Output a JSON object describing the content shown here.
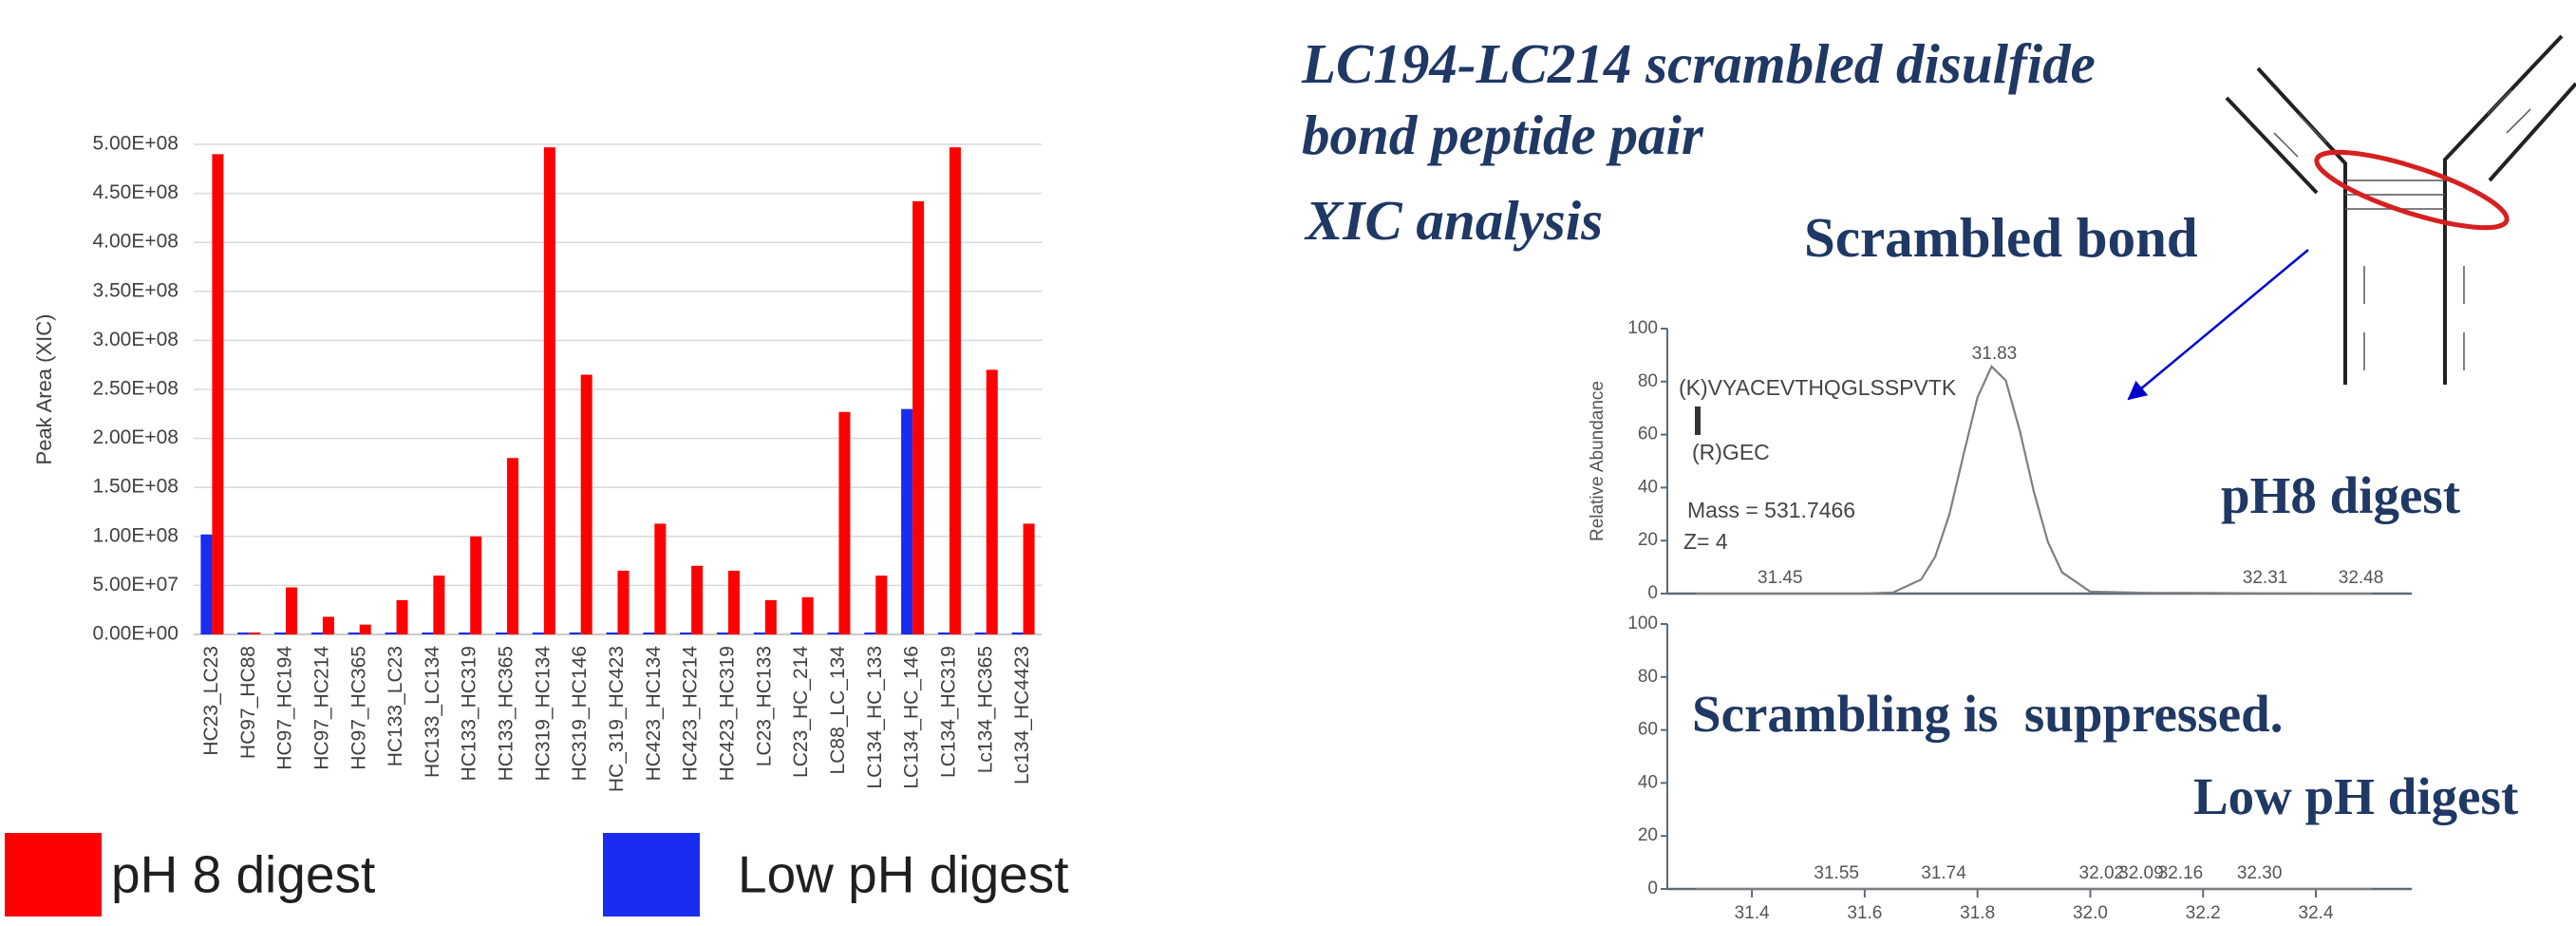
{
  "slide": {
    "title_lines": [
      "LC194-LC214 scrambled disulfide",
      "bond peptide pair"
    ],
    "subtitle": "XIC analysis",
    "callouts": [
      "Scrambled bond",
      "pH8 digest",
      "Scrambling is  suppressed.",
      "Low pH digest"
    ]
  },
  "chart_data": [
    {
      "type": "bar",
      "y_label": "Peak Area (XIC)",
      "categories": [
        "HC23_LC23",
        "HC97_HC88",
        "HC97_HC194",
        "HC97_HC214",
        "HC97_HC365",
        "HC133_LC23",
        "HC133_LC134",
        "HC133_HC319",
        "HC133_HC365",
        "HC319_HC134",
        "HC319_HC146",
        "HC_319_HC423",
        "HC423_HC134",
        "HC423_HC214",
        "HC423_HC319",
        "LC23_HC133",
        "LC23_HC_214",
        "LC88_LC_134",
        "LC134_HC_133",
        "LC134_HC_146",
        "LC134_HC319",
        "Lc134_HC365",
        "Lc134_HC4423"
      ],
      "series": [
        {
          "name": "Low pH digest",
          "color": "#1a2cf0",
          "values": [
            102000000,
            2000000,
            2000000,
            2000000,
            2000000,
            2000000,
            2000000,
            2000000,
            2000000,
            2000000,
            2000000,
            2000000,
            2000000,
            2000000,
            2000000,
            2000000,
            2000000,
            2000000,
            2000000,
            230000000,
            2000000,
            2000000,
            2000000
          ]
        },
        {
          "name": "pH 8 digest",
          "color": "#ff0000",
          "values": [
            490000000,
            2000000,
            48000000,
            18000000,
            10000000,
            35000000,
            60000000,
            100000000,
            180000000,
            497000000,
            265000000,
            65000000,
            113000000,
            70000000,
            65000000,
            35000000,
            38000000,
            227000000,
            60000000,
            442000000,
            497000000,
            270000000,
            113000000
          ]
        }
      ],
      "ylim": [
        0,
        500000000
      ],
      "yticks": [
        {
          "value": 0,
          "label": "0.00E+00"
        },
        {
          "value": 50000000,
          "label": "5.00E+07"
        },
        {
          "value": 100000000,
          "label": "1.00E+08"
        },
        {
          "value": 150000000,
          "label": "1.50E+08"
        },
        {
          "value": 200000000,
          "label": "2.00E+08"
        },
        {
          "value": 250000000,
          "label": "2.50E+08"
        },
        {
          "value": 300000000,
          "label": "3.00E+08"
        },
        {
          "value": 350000000,
          "label": "3.50E+08"
        },
        {
          "value": 400000000,
          "label": "4.00E+08"
        },
        {
          "value": 450000000,
          "label": "4.50E+08"
        },
        {
          "value": 500000000,
          "label": "5.00E+08"
        }
      ],
      "grid": true,
      "legend": "bottom"
    },
    {
      "type": "line",
      "y_label": "Relative Abundance",
      "color": "#7f7f7f",
      "annotations": [
        "(K)VYACEVTHQGLSSPVTK",
        "(R)GEC",
        "Mass = 531.7466",
        "Z= 4"
      ],
      "x": [
        31.3,
        31.4,
        31.5,
        31.6,
        31.65,
        31.7,
        31.725,
        31.75,
        31.775,
        31.8,
        31.825,
        31.85,
        31.875,
        31.9,
        31.925,
        31.95,
        32.0,
        32.05,
        32.1,
        32.2,
        32.3,
        32.4,
        32.5
      ],
      "values": [
        0,
        0,
        0,
        0,
        0.4,
        5.3,
        13.9,
        29.8,
        52.2,
        74.1,
        85.7,
        80.5,
        61.5,
        38.3,
        19.4,
        8.0,
        0.7,
        0.5,
        0.3,
        0.2,
        0.1,
        0,
        0
      ],
      "peak_labels": [
        31.83,
        31.45,
        32.31,
        32.48
      ],
      "xlim": [
        31.25,
        32.57
      ],
      "ylim": [
        0,
        100
      ],
      "yticks": [
        0,
        20,
        40,
        60,
        80,
        100
      ]
    },
    {
      "type": "line",
      "color": "#7f7f7f",
      "x": [
        31.3,
        31.55,
        31.74,
        32.02,
        32.09,
        32.16,
        32.3,
        32.5
      ],
      "values": [
        0,
        0,
        0,
        0,
        0,
        0,
        0,
        0
      ],
      "peak_labels": [
        31.55,
        31.74,
        32.02,
        32.09,
        32.16,
        {
          "value": 32.3,
          "label": "32.30"
        }
      ],
      "xlim": [
        31.25,
        32.57
      ],
      "ylim": [
        0,
        100
      ],
      "yticks": [
        0,
        20,
        40,
        60,
        80,
        100
      ],
      "xticks": [
        31.4,
        31.6,
        31.8,
        {
          "value": 32,
          "label": "32.0"
        },
        32.2,
        32.4
      ]
    }
  ]
}
